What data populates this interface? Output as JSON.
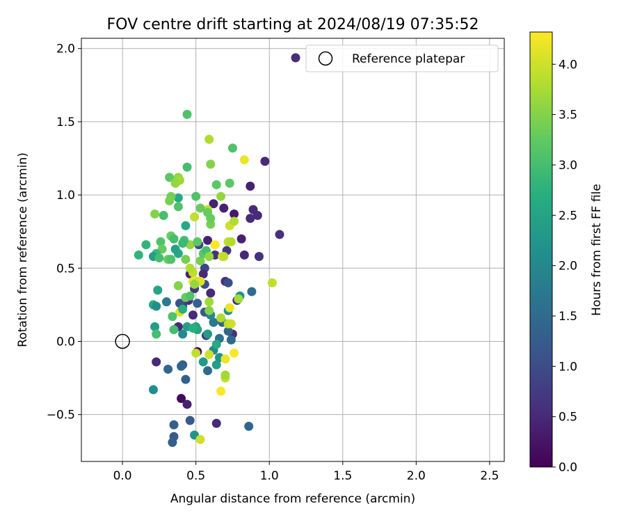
{
  "chart_data": {
    "type": "scatter",
    "title": "FOV centre drift starting at 2024/08/19 07:35:52",
    "xlabel": "Angular distance from reference (arcmin)",
    "ylabel": "Rotation from reference (arcmin)",
    "xlim": [
      -0.28,
      2.6
    ],
    "ylim": [
      -0.82,
      2.07
    ],
    "x_ticks": [
      0.0,
      0.5,
      1.0,
      1.5,
      2.0,
      2.5
    ],
    "y_ticks": [
      -0.5,
      0.0,
      0.5,
      1.0,
      1.5,
      2.0
    ],
    "x_tick_labels": [
      "0.0",
      "0.5",
      "1.0",
      "1.5",
      "2.0",
      "2.5"
    ],
    "y_tick_labels": [
      "−0.5",
      "0.0",
      "0.5",
      "1.0",
      "1.5",
      "2.0"
    ],
    "grid": true,
    "legend": {
      "placement": "top-right",
      "entries": [
        {
          "label": "",
          "marker": "filled-circle",
          "color": "#472d7b"
        },
        {
          "label": "Reference platepar",
          "marker": "open-circle",
          "color": "#000000"
        }
      ]
    },
    "colorbar": {
      "label": "Hours from first FF file",
      "colormap": "viridis",
      "range": [
        0,
        4.32
      ],
      "ticks": [
        0.0,
        0.5,
        1.0,
        1.5,
        2.0,
        2.5,
        3.0,
        3.5,
        4.0
      ],
      "tick_labels": [
        "0.0",
        "0.5",
        "1.0",
        "1.5",
        "2.0",
        "2.5",
        "3.0",
        "3.5",
        "4.0"
      ]
    },
    "reference_point": {
      "x": 0.0,
      "y": 0.0,
      "label": "Reference platepar"
    },
    "points": [
      {
        "x": 0.97,
        "y": 1.23,
        "h": 0.5
      },
      {
        "x": 0.87,
        "y": 1.06,
        "h": 0.4
      },
      {
        "x": 0.89,
        "y": 0.9,
        "h": 0.5
      },
      {
        "x": 0.92,
        "y": 0.86,
        "h": 0.5
      },
      {
        "x": 0.87,
        "y": 0.84,
        "h": 0.5
      },
      {
        "x": 0.76,
        "y": 0.87,
        "h": 0.3
      },
      {
        "x": 0.69,
        "y": 0.91,
        "h": 0.4
      },
      {
        "x": 0.62,
        "y": 0.94,
        "h": 0.4
      },
      {
        "x": 1.07,
        "y": 0.73,
        "h": 0.6
      },
      {
        "x": 0.93,
        "y": 0.58,
        "h": 0.6
      },
      {
        "x": 0.83,
        "y": 0.59,
        "h": 0.5
      },
      {
        "x": 0.81,
        "y": 0.7,
        "h": 0.4
      },
      {
        "x": 0.71,
        "y": 0.62,
        "h": 0.7
      },
      {
        "x": 0.58,
        "y": 0.69,
        "h": 0.4
      },
      {
        "x": 0.52,
        "y": 0.66,
        "h": 0.9
      },
      {
        "x": 0.63,
        "y": 0.59,
        "h": 0.6
      },
      {
        "x": 0.56,
        "y": 0.5,
        "h": 0.9
      },
      {
        "x": 0.55,
        "y": 0.46,
        "h": 0.5
      },
      {
        "x": 0.46,
        "y": 0.46,
        "h": 0.4
      },
      {
        "x": 0.49,
        "y": 0.36,
        "h": 0.7
      },
      {
        "x": 0.56,
        "y": 0.39,
        "h": 1.0
      },
      {
        "x": 0.6,
        "y": 0.33,
        "h": 0.5
      },
      {
        "x": 0.7,
        "y": 0.41,
        "h": 0.6
      },
      {
        "x": 0.72,
        "y": 0.4,
        "h": 1.0
      },
      {
        "x": 0.78,
        "y": 0.28,
        "h": 0.6
      },
      {
        "x": 0.88,
        "y": 0.34,
        "h": 1.5
      },
      {
        "x": 0.8,
        "y": 0.31,
        "h": 2.2
      },
      {
        "x": 0.72,
        "y": 0.21,
        "h": 2.2
      },
      {
        "x": 0.68,
        "y": 0.13,
        "h": 1.3
      },
      {
        "x": 0.75,
        "y": 0.05,
        "h": 0.6
      },
      {
        "x": 0.72,
        "y": 0.07,
        "h": 1.4
      },
      {
        "x": 0.74,
        "y": 0.01,
        "h": 1.5
      },
      {
        "x": 0.66,
        "y": 0.02,
        "h": 1.6
      },
      {
        "x": 0.62,
        "y": 0.13,
        "h": 1.7
      },
      {
        "x": 0.6,
        "y": 0.18,
        "h": 2.0
      },
      {
        "x": 0.56,
        "y": 0.2,
        "h": 1.2
      },
      {
        "x": 0.57,
        "y": 0.04,
        "h": 0.6
      },
      {
        "x": 0.58,
        "y": 0.05,
        "h": 2.3
      },
      {
        "x": 0.5,
        "y": 0.1,
        "h": 2.5
      },
      {
        "x": 0.48,
        "y": 0.18,
        "h": 0.5
      },
      {
        "x": 0.51,
        "y": 0.26,
        "h": 1.3
      },
      {
        "x": 0.45,
        "y": 0.28,
        "h": 0.6
      },
      {
        "x": 0.41,
        "y": 0.24,
        "h": 0.8
      },
      {
        "x": 0.39,
        "y": 0.26,
        "h": 1.1
      },
      {
        "x": 0.38,
        "y": 0.1,
        "h": 0.5
      },
      {
        "x": 0.41,
        "y": 0.05,
        "h": 2.0
      },
      {
        "x": 0.44,
        "y": 0.1,
        "h": 2.4
      },
      {
        "x": 0.51,
        "y": 0.08,
        "h": 2.5
      },
      {
        "x": 0.51,
        "y": -0.07,
        "h": 0.1
      },
      {
        "x": 0.55,
        "y": -0.14,
        "h": 2.3
      },
      {
        "x": 0.58,
        "y": -0.2,
        "h": 1.5
      },
      {
        "x": 0.64,
        "y": -0.16,
        "h": 2.4
      },
      {
        "x": 0.66,
        "y": -0.11,
        "h": 2.2
      },
      {
        "x": 0.62,
        "y": -0.06,
        "h": 2.0
      },
      {
        "x": 0.64,
        "y": -0.02,
        "h": 2.6
      },
      {
        "x": 0.41,
        "y": -0.16,
        "h": 1.2
      },
      {
        "x": 0.4,
        "y": -0.17,
        "h": 1.4
      },
      {
        "x": 0.43,
        "y": -0.26,
        "h": 1.3
      },
      {
        "x": 0.31,
        "y": -0.19,
        "h": 1.4
      },
      {
        "x": 0.23,
        "y": -0.14,
        "h": 0.5
      },
      {
        "x": 0.21,
        "y": -0.33,
        "h": 2.1
      },
      {
        "x": 0.4,
        "y": -0.39,
        "h": 0.1
      },
      {
        "x": 0.44,
        "y": -0.43,
        "h": 0.4
      },
      {
        "x": 0.46,
        "y": -0.54,
        "h": 1.2
      },
      {
        "x": 0.35,
        "y": -0.57,
        "h": 1.3
      },
      {
        "x": 0.49,
        "y": -0.64,
        "h": 2.2
      },
      {
        "x": 0.35,
        "y": -0.65,
        "h": 1.2
      },
      {
        "x": 0.34,
        "y": -0.69,
        "h": 1.3
      },
      {
        "x": 0.64,
        "y": -0.56,
        "h": 0.5
      },
      {
        "x": 0.86,
        "y": -0.58,
        "h": 1.4
      },
      {
        "x": 0.53,
        "y": -0.67,
        "h": 4.0
      },
      {
        "x": 0.67,
        "y": -0.34,
        "h": 4.3
      },
      {
        "x": 0.7,
        "y": -0.25,
        "h": 3.9
      },
      {
        "x": 0.7,
        "y": -0.23,
        "h": 3.7
      },
      {
        "x": 0.7,
        "y": -0.12,
        "h": 4.2
      },
      {
        "x": 0.76,
        "y": -0.08,
        "h": 4.3
      },
      {
        "x": 0.59,
        "y": -0.09,
        "h": 4.0
      },
      {
        "x": 0.5,
        "y": -0.08,
        "h": 3.9
      },
      {
        "x": 0.72,
        "y": 0.12,
        "h": 3.9
      },
      {
        "x": 0.74,
        "y": 0.12,
        "h": 4.0
      },
      {
        "x": 0.73,
        "y": 0.23,
        "h": 4.2
      },
      {
        "x": 0.67,
        "y": 0.16,
        "h": 3.8
      },
      {
        "x": 0.59,
        "y": 0.21,
        "h": 3.5
      },
      {
        "x": 0.59,
        "y": 0.27,
        "h": 3.7
      },
      {
        "x": 0.79,
        "y": 0.29,
        "h": 3.7
      },
      {
        "x": 1.02,
        "y": 0.4,
        "h": 3.9
      },
      {
        "x": 0.51,
        "y": 0.41,
        "h": 3.9
      },
      {
        "x": 0.48,
        "y": 0.41,
        "h": 4.2
      },
      {
        "x": 0.5,
        "y": 0.4,
        "h": 4.0
      },
      {
        "x": 0.53,
        "y": 0.41,
        "h": 4.1
      },
      {
        "x": 0.48,
        "y": 0.47,
        "h": 3.9
      },
      {
        "x": 0.46,
        "y": 0.5,
        "h": 3.8
      },
      {
        "x": 0.46,
        "y": 0.66,
        "h": 3.6
      },
      {
        "x": 0.53,
        "y": 0.55,
        "h": 3.4
      },
      {
        "x": 0.63,
        "y": 0.66,
        "h": 4.3
      },
      {
        "x": 0.68,
        "y": 0.58,
        "h": 4.1
      },
      {
        "x": 0.69,
        "y": 0.58,
        "h": 3.9
      },
      {
        "x": 0.72,
        "y": 0.68,
        "h": 3.9
      },
      {
        "x": 0.74,
        "y": 0.68,
        "h": 3.8
      },
      {
        "x": 0.73,
        "y": 0.79,
        "h": 4.0
      },
      {
        "x": 0.76,
        "y": 0.82,
        "h": 3.8
      },
      {
        "x": 0.58,
        "y": 0.9,
        "h": 3.9
      },
      {
        "x": 0.49,
        "y": 0.85,
        "h": 3.9
      },
      {
        "x": 0.6,
        "y": 0.8,
        "h": 3.4
      },
      {
        "x": 0.6,
        "y": 0.84,
        "h": 3.3
      },
      {
        "x": 0.58,
        "y": 0.88,
        "h": 3.3
      },
      {
        "x": 0.53,
        "y": 0.91,
        "h": 3.3
      },
      {
        "x": 0.67,
        "y": 0.99,
        "h": 3.6
      },
      {
        "x": 0.64,
        "y": 1.07,
        "h": 3.2
      },
      {
        "x": 0.73,
        "y": 1.08,
        "h": 3.2
      },
      {
        "x": 0.6,
        "y": 1.21,
        "h": 3.5
      },
      {
        "x": 0.59,
        "y": 1.38,
        "h": 3.8
      },
      {
        "x": 0.75,
        "y": 1.32,
        "h": 3.1
      },
      {
        "x": 0.83,
        "y": 1.24,
        "h": 4.2
      },
      {
        "x": 0.44,
        "y": 1.55,
        "h": 3.1
      },
      {
        "x": 0.44,
        "y": 1.19,
        "h": 3.0
      },
      {
        "x": 0.32,
        "y": 1.12,
        "h": 3.2
      },
      {
        "x": 0.38,
        "y": 1.12,
        "h": 3.6
      },
      {
        "x": 0.39,
        "y": 1.1,
        "h": 3.7
      },
      {
        "x": 0.36,
        "y": 1.08,
        "h": 3.6
      },
      {
        "x": 0.38,
        "y": 0.98,
        "h": 2.6
      },
      {
        "x": 0.33,
        "y": 0.99,
        "h": 3.4
      },
      {
        "x": 0.32,
        "y": 0.96,
        "h": 3.4
      },
      {
        "x": 0.38,
        "y": 0.92,
        "h": 3.1
      },
      {
        "x": 0.5,
        "y": 0.99,
        "h": 3.1
      },
      {
        "x": 0.28,
        "y": 0.86,
        "h": 3.0
      },
      {
        "x": 0.22,
        "y": 0.87,
        "h": 3.5
      },
      {
        "x": 0.43,
        "y": 0.79,
        "h": 2.6
      },
      {
        "x": 0.33,
        "y": 0.72,
        "h": 3.3
      },
      {
        "x": 0.35,
        "y": 0.7,
        "h": 3.0
      },
      {
        "x": 0.42,
        "y": 0.69,
        "h": 3.0
      },
      {
        "x": 0.41,
        "y": 0.67,
        "h": 2.9
      },
      {
        "x": 0.51,
        "y": 0.68,
        "h": 3.2
      },
      {
        "x": 0.26,
        "y": 0.68,
        "h": 3.1
      },
      {
        "x": 0.27,
        "y": 0.63,
        "h": 3.3
      },
      {
        "x": 0.23,
        "y": 0.6,
        "h": 2.9
      },
      {
        "x": 0.21,
        "y": 0.58,
        "h": 2.4
      },
      {
        "x": 0.25,
        "y": 0.57,
        "h": 3.0
      },
      {
        "x": 0.31,
        "y": 0.56,
        "h": 3.3
      },
      {
        "x": 0.33,
        "y": 0.56,
        "h": 3.1
      },
      {
        "x": 0.38,
        "y": 0.6,
        "h": 2.6
      },
      {
        "x": 0.36,
        "y": 0.63,
        "h": 2.5
      },
      {
        "x": 0.16,
        "y": 0.66,
        "h": 2.8
      },
      {
        "x": 0.11,
        "y": 0.59,
        "h": 2.8
      },
      {
        "x": 0.43,
        "y": 0.56,
        "h": 3.4
      },
      {
        "x": 0.55,
        "y": 0.6,
        "h": 3.2
      },
      {
        "x": 0.57,
        "y": 0.62,
        "h": 3.0
      },
      {
        "x": 0.59,
        "y": 0.58,
        "h": 3.6
      },
      {
        "x": 0.38,
        "y": 0.38,
        "h": 3.5
      },
      {
        "x": 0.49,
        "y": 0.39,
        "h": 3.6
      },
      {
        "x": 0.43,
        "y": 0.3,
        "h": 3.3
      },
      {
        "x": 0.46,
        "y": 0.31,
        "h": 3.1
      },
      {
        "x": 0.24,
        "y": 0.35,
        "h": 2.5
      },
      {
        "x": 0.3,
        "y": 0.27,
        "h": 1.8
      },
      {
        "x": 0.21,
        "y": 0.25,
        "h": 2.6
      },
      {
        "x": 0.23,
        "y": 0.24,
        "h": 2.1
      },
      {
        "x": 0.39,
        "y": 0.2,
        "h": 4.1
      },
      {
        "x": 0.41,
        "y": 0.22,
        "h": 2.7
      },
      {
        "x": 0.34,
        "y": 0.17,
        "h": 3.1
      },
      {
        "x": 0.22,
        "y": 0.1,
        "h": 2.4
      },
      {
        "x": 0.23,
        "y": 0.05,
        "h": 3.0
      },
      {
        "x": 0.35,
        "y": 0.08,
        "h": 3.0
      },
      {
        "x": 0.48,
        "y": 0.09,
        "h": 2.7
      }
    ]
  }
}
